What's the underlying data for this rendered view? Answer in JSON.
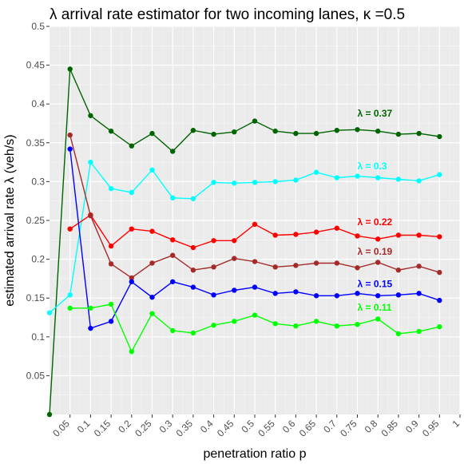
{
  "chart_data": {
    "type": "line",
    "title": "λ arrival rate estimator for two incoming lanes, κ =0.5",
    "xlabel": "penetration ratio p",
    "ylabel": "estimated arrival rate λ (veh/s)",
    "xlim": [
      0,
      1
    ],
    "ylim": [
      0,
      0.5
    ],
    "x_ticks": [
      0.05,
      0.1,
      0.15,
      0.2,
      0.25,
      0.3,
      0.35,
      0.4,
      0.45,
      0.5,
      0.55,
      0.6,
      0.65,
      0.7,
      0.75,
      0.8,
      0.85,
      0.9,
      0.95,
      1
    ],
    "x_tick_labels": [
      "0.05",
      "0.1",
      "0.15",
      "0.2",
      "0.25",
      "0.3",
      "0.35",
      "0.4",
      "0.45",
      "0.5",
      "0.55",
      "0.6",
      "0.65",
      "0.7",
      "0.75",
      "0.8",
      "0.85",
      "0.9",
      "0.95",
      "1"
    ],
    "y_ticks": [
      0.05,
      0.1,
      0.15,
      0.2,
      0.25,
      0.3,
      0.35,
      0.4,
      0.45,
      0.5
    ],
    "y_tick_labels": [
      "0.05",
      "0.1",
      "0.15",
      "0.2",
      "0.25",
      "0.3",
      "0.35",
      "0.4",
      "0.45",
      "0.5"
    ],
    "grid": true,
    "background": "#ebebeb",
    "series": [
      {
        "name": "λ = 0.37",
        "color": "#006400",
        "x": [
          0,
          0.05,
          0.1,
          0.15,
          0.2,
          0.25,
          0.3,
          0.35,
          0.4,
          0.45,
          0.5,
          0.55,
          0.6,
          0.65,
          0.7,
          0.75,
          0.8,
          0.85,
          0.9,
          0.95
        ],
        "values": [
          0.0,
          0.445,
          0.385,
          0.365,
          0.346,
          0.362,
          0.339,
          0.366,
          0.361,
          0.364,
          0.378,
          0.365,
          0.362,
          0.362,
          0.366,
          0.367,
          0.365,
          0.361,
          0.362,
          0.358
        ]
      },
      {
        "name": "λ = 0.3",
        "color": "#00ffff",
        "x": [
          0,
          0.05,
          0.1,
          0.15,
          0.2,
          0.25,
          0.3,
          0.35,
          0.4,
          0.45,
          0.5,
          0.55,
          0.6,
          0.65,
          0.7,
          0.75,
          0.8,
          0.85,
          0.9,
          0.95
        ],
        "values": [
          0.131,
          0.154,
          0.325,
          0.291,
          0.286,
          0.315,
          0.279,
          0.278,
          0.299,
          0.298,
          0.299,
          0.3,
          0.302,
          0.312,
          0.305,
          0.307,
          0.305,
          0.303,
          0.301,
          0.309
        ]
      },
      {
        "name": "λ = 0.22",
        "color": "#ff0000",
        "x": [
          0.05,
          0.1,
          0.15,
          0.2,
          0.25,
          0.3,
          0.35,
          0.4,
          0.45,
          0.5,
          0.55,
          0.6,
          0.65,
          0.7,
          0.75,
          0.8,
          0.85,
          0.9,
          0.95
        ],
        "values": [
          0.239,
          0.257,
          0.217,
          0.239,
          0.236,
          0.225,
          0.215,
          0.224,
          0.224,
          0.245,
          0.231,
          0.232,
          0.235,
          0.24,
          0.23,
          0.226,
          0.231,
          0.231,
          0.229
        ]
      },
      {
        "name": "λ = 0.19",
        "color": "#a52a2a",
        "x": [
          0.05,
          0.1,
          0.15,
          0.2,
          0.25,
          0.3,
          0.35,
          0.4,
          0.45,
          0.5,
          0.55,
          0.6,
          0.65,
          0.7,
          0.75,
          0.8,
          0.85,
          0.9,
          0.95
        ],
        "values": [
          0.36,
          0.256,
          0.194,
          0.176,
          0.195,
          0.205,
          0.186,
          0.19,
          0.201,
          0.197,
          0.19,
          0.192,
          0.195,
          0.195,
          0.189,
          0.196,
          0.186,
          0.191,
          0.183
        ]
      },
      {
        "name": "λ = 0.15",
        "color": "#0000ff",
        "x": [
          0.05,
          0.1,
          0.15,
          0.2,
          0.25,
          0.3,
          0.35,
          0.4,
          0.45,
          0.5,
          0.55,
          0.6,
          0.65,
          0.7,
          0.75,
          0.8,
          0.85,
          0.9,
          0.95
        ],
        "values": [
          0.342,
          0.111,
          0.12,
          0.171,
          0.151,
          0.171,
          0.164,
          0.154,
          0.16,
          0.164,
          0.156,
          0.158,
          0.153,
          0.153,
          0.156,
          0.153,
          0.154,
          0.156,
          0.147
        ]
      },
      {
        "name": "λ = 0.11",
        "color": "#00ff00",
        "x": [
          0.05,
          0.1,
          0.15,
          0.2,
          0.25,
          0.3,
          0.35,
          0.4,
          0.45,
          0.5,
          0.55,
          0.6,
          0.65,
          0.7,
          0.75,
          0.8,
          0.85,
          0.9,
          0.95
        ],
        "values": [
          0.137,
          0.137,
          0.142,
          0.081,
          0.13,
          0.108,
          0.105,
          0.115,
          0.12,
          0.128,
          0.117,
          0.114,
          0.12,
          0.114,
          0.116,
          0.123,
          0.104,
          0.107,
          0.113
        ]
      }
    ]
  }
}
